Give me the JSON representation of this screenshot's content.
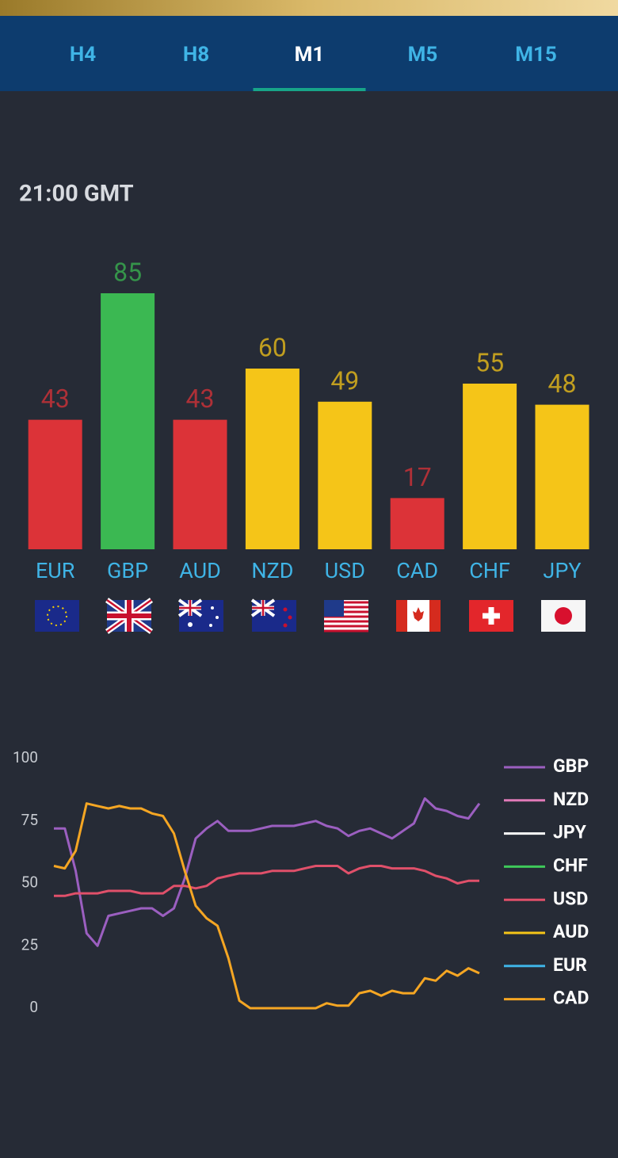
{
  "tabs": [
    "H4",
    "H8",
    "M1",
    "M5",
    "M15"
  ],
  "selected_tab": 2,
  "time": "21:00 GMT",
  "chart_data": [
    {
      "type": "bar",
      "categories": [
        "EUR",
        "GBP",
        "AUD",
        "NZD",
        "USD",
        "CAD",
        "CHF",
        "JPY"
      ],
      "values": [
        43,
        85,
        43,
        60,
        49,
        17,
        55,
        48
      ],
      "colors": [
        "#dc3338",
        "#3bb852",
        "#dc3338",
        "#f5c518",
        "#f5c518",
        "#dc3338",
        "#f5c518",
        "#f5c518"
      ],
      "ylim": [
        0,
        100
      ]
    },
    {
      "type": "line",
      "ylim": [
        0,
        100
      ],
      "yticks": [
        0,
        25,
        50,
        75,
        100
      ],
      "legend": "right",
      "series": [
        {
          "name": "GBP",
          "color": "#9b5fc0",
          "values": [
            72,
            72,
            55,
            30,
            25,
            37,
            38,
            39,
            40,
            40,
            37,
            40,
            52,
            68,
            72,
            75,
            71,
            71,
            71,
            72,
            73,
            73,
            73,
            74,
            75,
            73,
            72,
            69,
            71,
            72,
            70,
            68,
            71,
            74,
            84,
            80,
            79,
            77,
            76,
            82
          ]
        },
        {
          "name": "NZD",
          "color": "#e07ab8",
          "values": [
            null,
            null,
            null,
            null,
            null,
            null,
            null,
            null,
            null,
            null,
            null,
            null,
            null,
            null,
            null,
            null,
            null,
            null,
            null,
            null,
            null,
            null,
            null,
            null,
            null,
            null,
            null,
            null,
            null,
            null,
            null,
            null,
            null,
            null,
            null,
            null,
            null,
            null,
            null,
            null
          ]
        },
        {
          "name": "JPY",
          "color": "#ffffff",
          "values": [
            null,
            null,
            null,
            null,
            null,
            null,
            null,
            null,
            null,
            null,
            null,
            null,
            null,
            null,
            null,
            null,
            null,
            null,
            null,
            null,
            null,
            null,
            null,
            null,
            null,
            null,
            null,
            null,
            null,
            null,
            null,
            null,
            null,
            null,
            null,
            null,
            null,
            null,
            null,
            null
          ]
        },
        {
          "name": "CHF",
          "color": "#3ec95a",
          "values": [
            null,
            null,
            null,
            null,
            null,
            null,
            null,
            null,
            null,
            null,
            null,
            null,
            null,
            null,
            null,
            null,
            null,
            null,
            null,
            null,
            null,
            null,
            null,
            null,
            null,
            null,
            null,
            null,
            null,
            null,
            null,
            null,
            null,
            null,
            null,
            null,
            null,
            null,
            null,
            null
          ]
        },
        {
          "name": "USD",
          "color": "#e0506a",
          "values": [
            45,
            45,
            46,
            46,
            46,
            47,
            47,
            47,
            46,
            46,
            46,
            49,
            49,
            48,
            49,
            52,
            53,
            54,
            54,
            54,
            55,
            55,
            55,
            56,
            57,
            57,
            57,
            54,
            56,
            57,
            57,
            56,
            56,
            56,
            55,
            53,
            52,
            50,
            51,
            51
          ]
        },
        {
          "name": "AUD",
          "color": "#f5c518",
          "values": [
            null,
            null,
            null,
            null,
            null,
            null,
            null,
            null,
            null,
            null,
            null,
            null,
            null,
            null,
            null,
            null,
            null,
            null,
            null,
            null,
            null,
            null,
            null,
            null,
            null,
            null,
            null,
            null,
            null,
            null,
            null,
            null,
            null,
            null,
            null,
            null,
            null,
            null,
            null,
            null
          ]
        },
        {
          "name": "EUR",
          "color": "#3fb4e6",
          "values": [
            null,
            null,
            null,
            null,
            null,
            null,
            null,
            null,
            null,
            null,
            null,
            null,
            null,
            null,
            null,
            null,
            null,
            null,
            null,
            null,
            null,
            null,
            null,
            null,
            null,
            null,
            null,
            null,
            null,
            null,
            null,
            null,
            null,
            null,
            null,
            null,
            null,
            null,
            null,
            null
          ]
        },
        {
          "name": "CAD",
          "color": "#f5a623",
          "values": [
            57,
            56,
            63,
            82,
            81,
            80,
            81,
            80,
            80,
            78,
            77,
            70,
            55,
            41,
            36,
            33,
            20,
            3,
            0,
            0,
            0,
            0,
            0,
            0,
            0,
            2,
            1,
            1,
            6,
            7,
            5,
            7,
            6,
            6,
            12,
            11,
            15,
            13,
            16,
            14
          ]
        }
      ]
    }
  ]
}
